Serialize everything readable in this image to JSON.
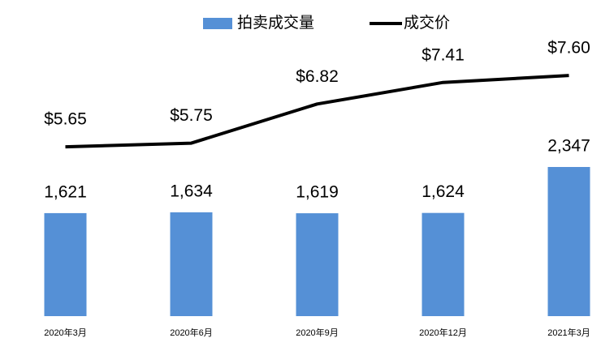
{
  "chart_data": {
    "type": "bar",
    "categories": [
      "2020年3月",
      "2020年6月",
      "2020年9月",
      "2020年12月",
      "2021年3月"
    ],
    "series": [
      {
        "name": "拍卖成交量",
        "type": "bar",
        "color": "#5590d6",
        "values": [
          1621,
          1634,
          1619,
          1624,
          2347
        ],
        "value_labels": [
          "1,621",
          "1,634",
          "1,619",
          "1,624",
          "2,347"
        ]
      },
      {
        "name": "成交价",
        "type": "line",
        "axis": "y2",
        "color": "#000000",
        "values": [
          5.65,
          5.75,
          6.82,
          7.41,
          7.6
        ],
        "value_labels": [
          "$5.65",
          "$5.75",
          "$6.82",
          "$7.41",
          "$7.60"
        ]
      }
    ],
    "ylim": [
      0,
      2500
    ],
    "y2lim": [
      4,
      9
    ],
    "legend": "top"
  }
}
